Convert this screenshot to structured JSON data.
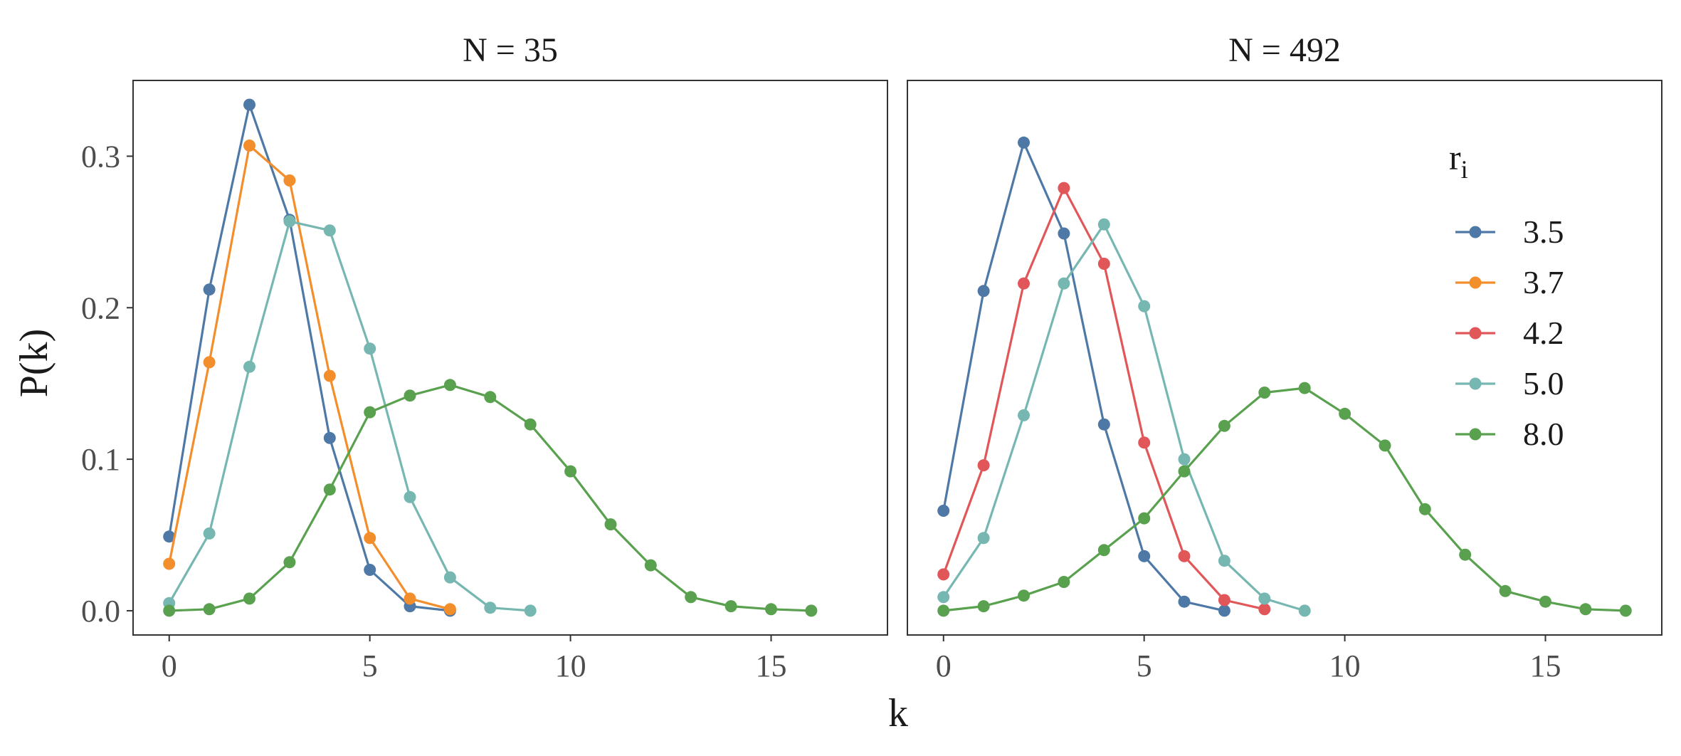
{
  "colors": {
    "3.5": "#4e79a7",
    "3.7": "#f28e2b",
    "4.2": "#e15759",
    "5.0": "#76b7b2",
    "8.0": "#59a14f"
  },
  "chart_data": {
    "type": "line",
    "xlabel": "k",
    "ylabel": "P(k)",
    "legend": {
      "title_main": "r",
      "title_sub": "i",
      "placement": "top-right of right panel",
      "entries": [
        "3.5",
        "3.7",
        "4.2",
        "5.0",
        "8.0"
      ]
    },
    "grid": false,
    "panels": [
      {
        "title": "N = 35",
        "xlim": [
          -0.9,
          17.9
        ],
        "ylim": [
          -0.016,
          0.35
        ],
        "xticks": [
          "0",
          "5",
          "10",
          "15"
        ],
        "yticks": [
          "0.0",
          "0.1",
          "0.2",
          "0.3"
        ],
        "series": [
          {
            "name": "3.5",
            "x": [
              0,
              1,
              2,
              3,
              4,
              5,
              6,
              7
            ],
            "y": [
              0.049,
              0.212,
              0.334,
              0.258,
              0.114,
              0.027,
              0.003,
              0.0
            ]
          },
          {
            "name": "3.7",
            "x": [
              0,
              1,
              2,
              3,
              4,
              5,
              6,
              7
            ],
            "y": [
              0.031,
              0.164,
              0.307,
              0.284,
              0.155,
              0.048,
              0.008,
              0.001
            ]
          },
          {
            "name": "5.0",
            "x": [
              0,
              1,
              2,
              3,
              4,
              5,
              6,
              7,
              8,
              9
            ],
            "y": [
              0.005,
              0.051,
              0.161,
              0.257,
              0.251,
              0.173,
              0.075,
              0.022,
              0.002,
              0.0
            ]
          },
          {
            "name": "8.0",
            "x": [
              0,
              1,
              2,
              3,
              4,
              5,
              6,
              7,
              8,
              9,
              10,
              11,
              12,
              13,
              14,
              15,
              16
            ],
            "y": [
              0.0,
              0.001,
              0.008,
              0.032,
              0.08,
              0.131,
              0.142,
              0.149,
              0.141,
              0.123,
              0.092,
              0.057,
              0.03,
              0.009,
              0.003,
              0.001,
              0.0
            ]
          }
        ]
      },
      {
        "title": "N = 492",
        "xlim": [
          -0.9,
          17.9
        ],
        "ylim": [
          -0.016,
          0.35
        ],
        "xticks": [
          "0",
          "5",
          "10",
          "15"
        ],
        "yticks": [
          "0.0",
          "0.1",
          "0.2",
          "0.3"
        ],
        "series": [
          {
            "name": "3.5",
            "x": [
              0,
              1,
              2,
              3,
              4,
              5,
              6,
              7
            ],
            "y": [
              0.066,
              0.211,
              0.309,
              0.249,
              0.123,
              0.036,
              0.006,
              0.0
            ]
          },
          {
            "name": "4.2",
            "x": [
              0,
              1,
              2,
              3,
              4,
              5,
              6,
              7,
              8
            ],
            "y": [
              0.024,
              0.096,
              0.216,
              0.279,
              0.229,
              0.111,
              0.036,
              0.007,
              0.001
            ]
          },
          {
            "name": "5.0",
            "x": [
              0,
              1,
              2,
              3,
              4,
              5,
              6,
              7,
              8,
              9
            ],
            "y": [
              0.009,
              0.048,
              0.129,
              0.216,
              0.255,
              0.201,
              0.1,
              0.033,
              0.008,
              0.0
            ]
          },
          {
            "name": "8.0",
            "x": [
              0,
              1,
              2,
              3,
              4,
              5,
              6,
              7,
              8,
              9,
              10,
              11,
              12,
              13,
              14,
              15,
              16,
              17
            ],
            "y": [
              0.0,
              0.003,
              0.01,
              0.019,
              0.04,
              0.061,
              0.092,
              0.122,
              0.144,
              0.147,
              0.13,
              0.109,
              0.067,
              0.037,
              0.013,
              0.006,
              0.001,
              0.0
            ]
          }
        ]
      }
    ]
  }
}
